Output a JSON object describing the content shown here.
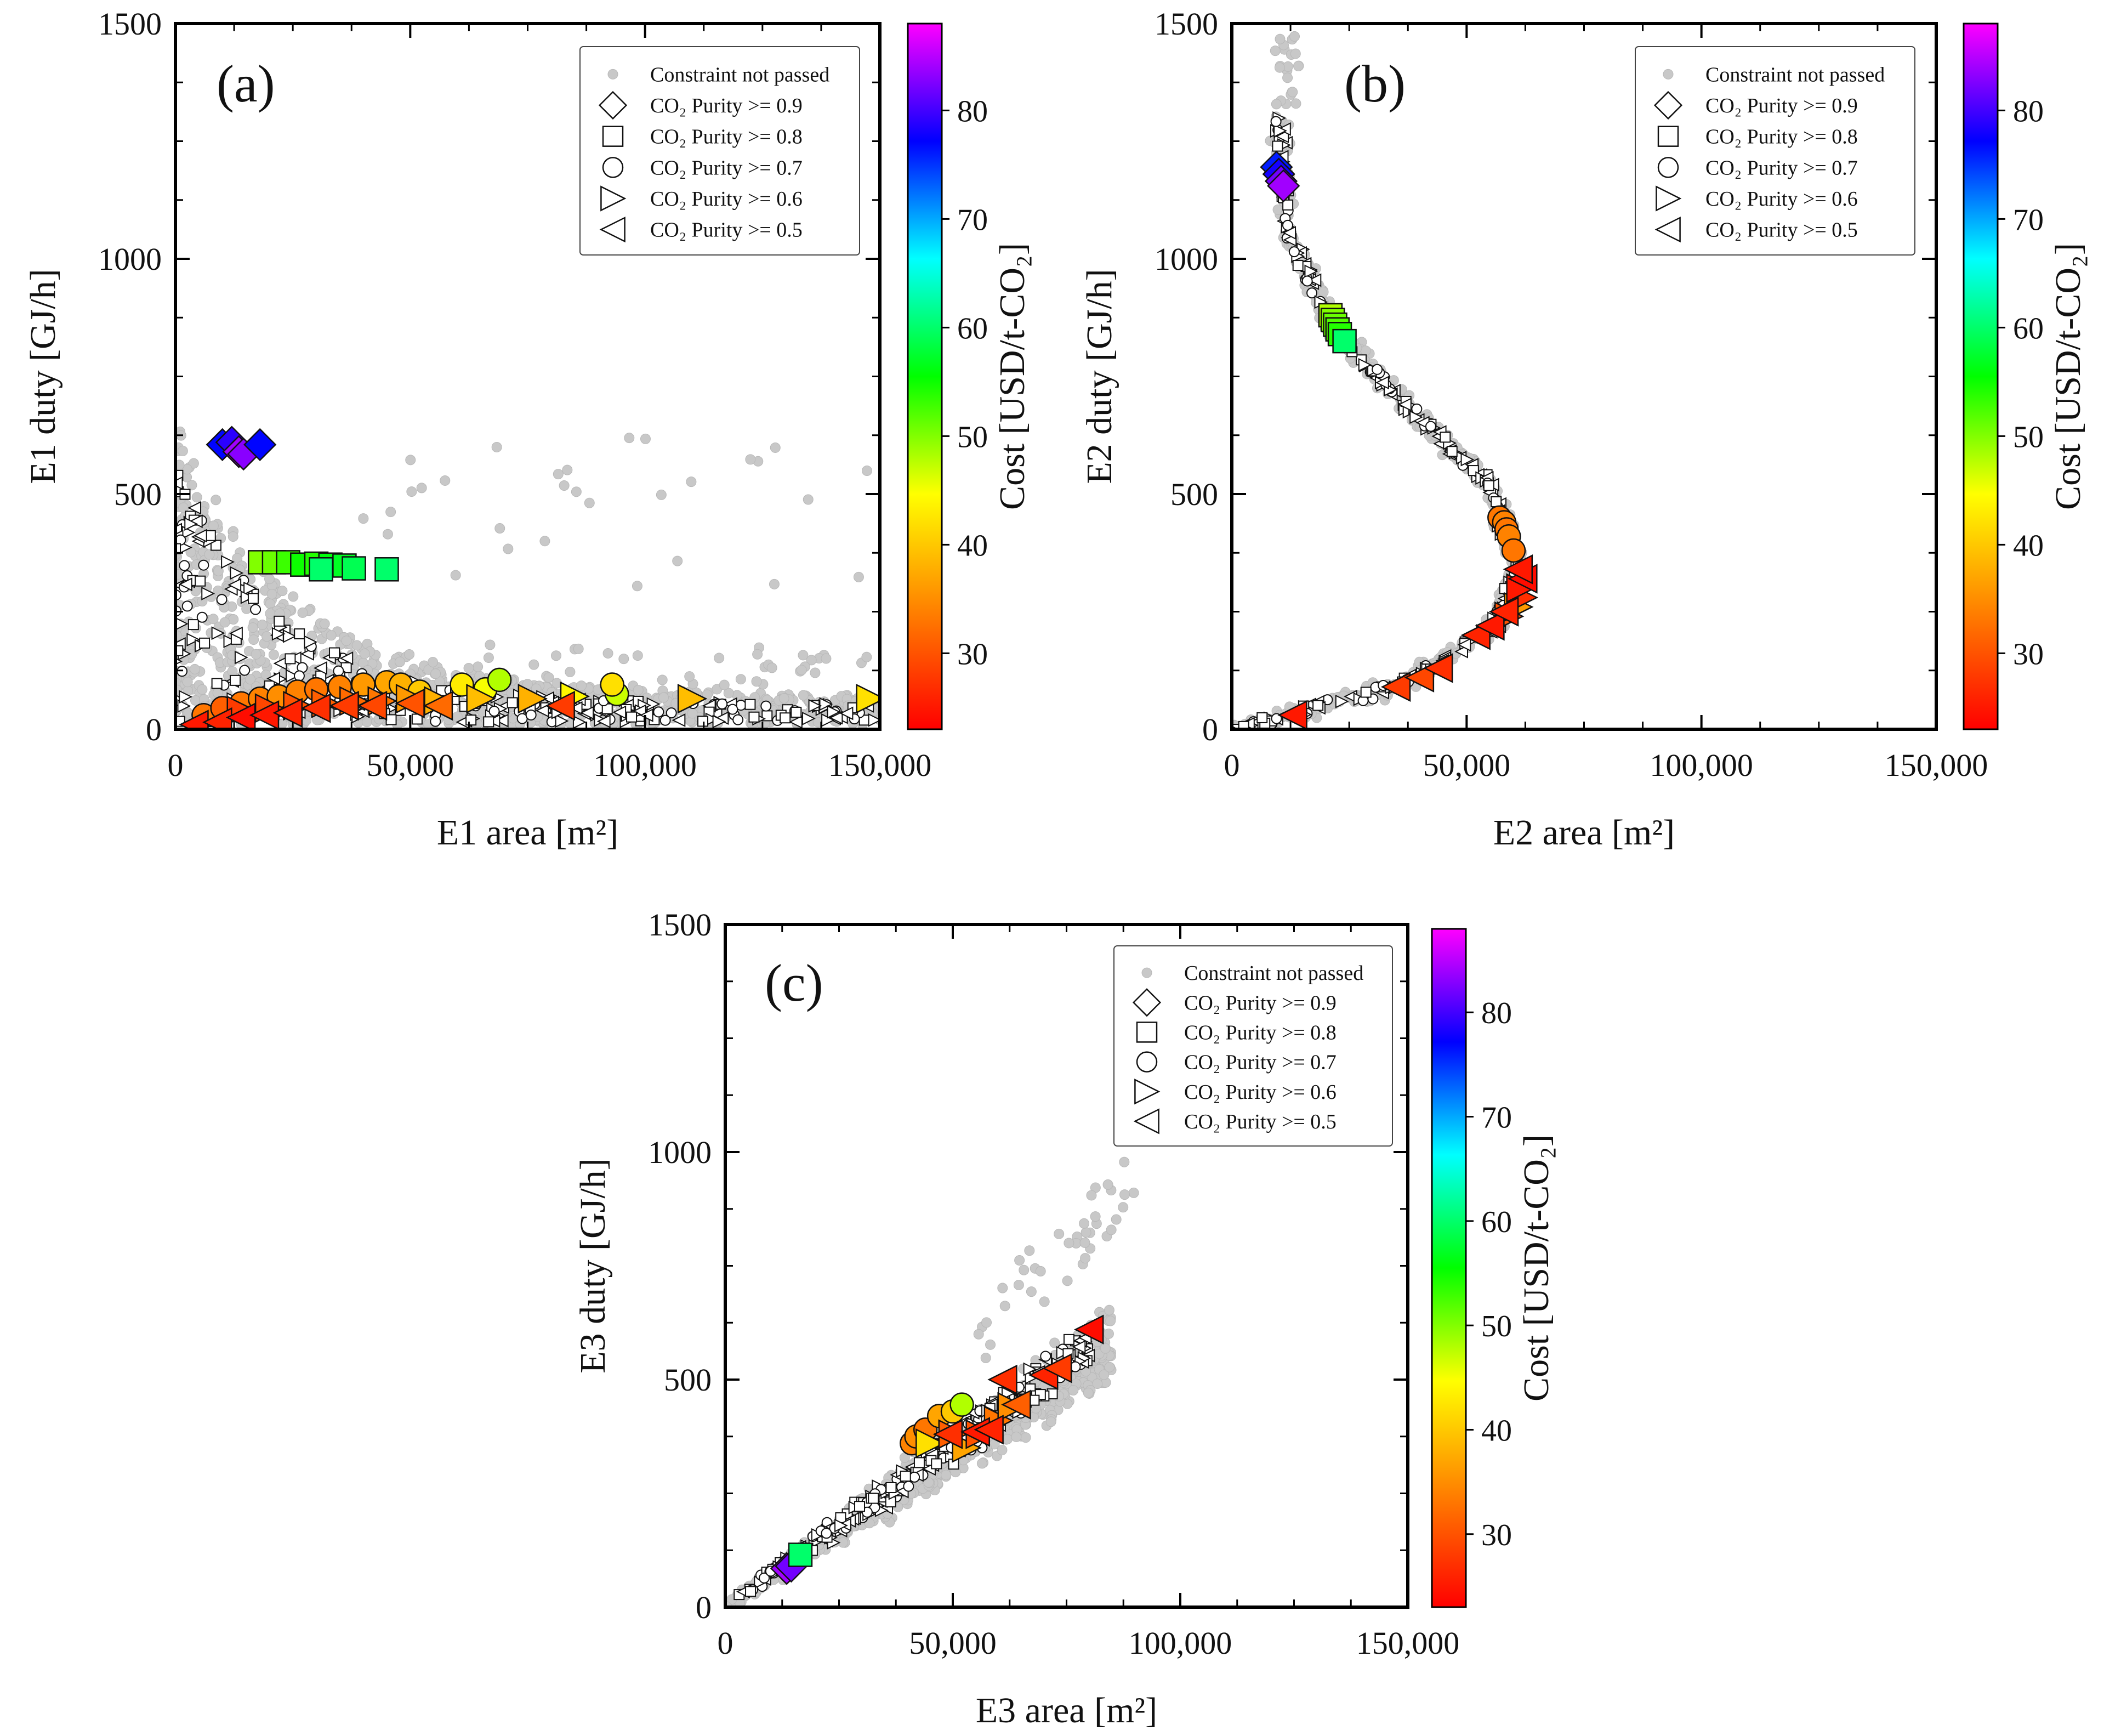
{
  "figure": {
    "legend": [
      {
        "marker": "circle-grey",
        "text": "Constraint not passed"
      },
      {
        "marker": "diamond",
        "text": "CO₂ Purity >= 0.9"
      },
      {
        "marker": "square",
        "text": "CO₂ Purity >= 0.8"
      },
      {
        "marker": "circle",
        "text": "CO₂ Purity >= 0.7"
      },
      {
        "marker": "triangle-right",
        "text": "CO₂ Purity >= 0.6"
      },
      {
        "marker": "triangle-left",
        "text": "CO₂ Purity >= 0.5"
      }
    ],
    "colorbar": {
      "label": "Cost [USD/t-CO₂]",
      "range": [
        23,
        88
      ],
      "ticks": [
        30,
        40,
        50,
        60,
        70,
        80
      ],
      "tick_labels": [
        "30",
        "40",
        "50",
        "60",
        "70",
        "80"
      ],
      "colors": [
        "#ff0000",
        "#ff8000",
        "#ffff00",
        "#00ff00",
        "#00ffff",
        "#0000ff",
        "#ff00ff"
      ],
      "grey_color": "#c8c8c8"
    }
  },
  "chart_data": [
    {
      "type": "scatter",
      "panel": "(a)",
      "xlabel": "E1 area [m²]",
      "ylabel": "E1 duty [GJ/h]",
      "xlim": [
        0,
        150000
      ],
      "ylim": [
        0,
        1500
      ],
      "xticks": [
        0,
        50000,
        100000,
        150000
      ],
      "xtick_labels": [
        "0",
        "50,000",
        "100,000",
        "150,000"
      ],
      "yticks": [
        0,
        500,
        1000,
        1500
      ],
      "ytick_labels": [
        "0",
        "500",
        "1000",
        "1500"
      ],
      "series": [
        {
          "name": "CO₂ Purity >= 0.9",
          "marker": "diamond",
          "points": [
            [
              10000,
              605,
              77
            ],
            [
              12000,
              610,
              79
            ],
            [
              13500,
              590,
              84
            ],
            [
              14500,
              585,
              83
            ],
            [
              18000,
              605,
              77
            ]
          ]
        },
        {
          "name": "CO₂ Purity >= 0.8",
          "marker": "square",
          "points": [
            [
              18000,
              355,
              50
            ],
            [
              21000,
              355,
              51
            ],
            [
              24000,
              355,
              53
            ],
            [
              27000,
              350,
              55
            ],
            [
              30000,
              352,
              54
            ],
            [
              33000,
              350,
              56
            ],
            [
              36000,
              348,
              57
            ],
            [
              31000,
              340,
              60
            ],
            [
              38000,
              342,
              59
            ],
            [
              45000,
              340,
              60
            ]
          ]
        },
        {
          "name": "CO₂ Purity >= 0.7",
          "marker": "circle",
          "points": [
            [
              6000,
              30,
              33
            ],
            [
              10000,
              45,
              31
            ],
            [
              14000,
              55,
              33
            ],
            [
              18000,
              65,
              34
            ],
            [
              22000,
              70,
              35
            ],
            [
              26000,
              80,
              34
            ],
            [
              30000,
              85,
              33
            ],
            [
              35000,
              90,
              34
            ],
            [
              40000,
              95,
              36
            ],
            [
              45000,
              100,
              37
            ],
            [
              48000,
              95,
              38
            ],
            [
              52000,
              80,
              40
            ],
            [
              61000,
              95,
              43
            ],
            [
              66000,
              85,
              45
            ],
            [
              69000,
              105,
              48
            ],
            [
              94000,
              75,
              47
            ],
            [
              93000,
              95,
              42
            ]
          ]
        },
        {
          "name": "CO₂ Purity >= 0.6",
          "marker": "triangle-right",
          "points": [
            [
              14000,
              40,
              28
            ],
            [
              20000,
              45,
              29
            ],
            [
              26000,
              50,
              30
            ],
            [
              32000,
              55,
              31
            ],
            [
              38000,
              60,
              32
            ],
            [
              44000,
              60,
              33
            ],
            [
              50000,
              65,
              36
            ],
            [
              56000,
              60,
              38
            ],
            [
              65000,
              65,
              39
            ],
            [
              76000,
              65,
              38
            ],
            [
              85000,
              70,
              44
            ],
            [
              110000,
              65,
              39
            ],
            [
              148000,
              65,
              42
            ]
          ]
        },
        {
          "name": "CO₂ Purity >= 0.5",
          "marker": "triangle-left",
          "points": [
            [
              4000,
              10,
              25
            ],
            [
              9000,
              15,
              26
            ],
            [
              14000,
              25,
              24
            ],
            [
              19000,
              30,
              25
            ],
            [
              24000,
              35,
              26
            ],
            [
              30000,
              45,
              27
            ],
            [
              36000,
              50,
              28
            ],
            [
              42000,
              50,
              29
            ],
            [
              50000,
              55,
              30
            ],
            [
              56000,
              50,
              32
            ],
            [
              82000,
              50,
              28
            ]
          ]
        }
      ]
    },
    {
      "type": "scatter",
      "panel": "(b)",
      "xlabel": "E2 area [m²]",
      "ylabel": "E2 duty [GJ/h]",
      "xlim": [
        0,
        150000
      ],
      "ylim": [
        0,
        1500
      ],
      "xticks": [
        0,
        50000,
        100000,
        150000
      ],
      "xtick_labels": [
        "0",
        "50,000",
        "100,000",
        "150,000"
      ],
      "yticks": [
        0,
        500,
        1000,
        1500
      ],
      "ytick_labels": [
        "0",
        "500",
        "1000",
        "1500"
      ],
      "series": [
        {
          "name": "CO₂ Purity >= 0.9",
          "marker": "diamond",
          "points": [
            [
              9500,
              1195,
              76
            ],
            [
              10000,
              1180,
              78
            ],
            [
              10500,
              1165,
              82
            ],
            [
              11000,
              1155,
              84
            ]
          ]
        },
        {
          "name": "CO₂ Purity >= 0.8",
          "marker": "square",
          "points": [
            [
              21000,
              880,
              48
            ],
            [
              21500,
              870,
              50
            ],
            [
              22000,
              860,
              51
            ],
            [
              22500,
              850,
              52
            ],
            [
              23000,
              840,
              54
            ],
            [
              24000,
              825,
              60
            ]
          ]
        },
        {
          "name": "CO₂ Purity >= 0.7",
          "marker": "circle",
          "points": [
            [
              57000,
              450,
              33
            ],
            [
              58000,
              440,
              34
            ],
            [
              58500,
              425,
              33
            ],
            [
              59000,
              410,
              34
            ],
            [
              60000,
              380,
              33
            ]
          ]
        },
        {
          "name": "CO₂ Purity >= 0.6",
          "marker": "triangle-right",
          "points": [
            [
              59000,
              240,
              30
            ],
            [
              61000,
              260,
              36
            ],
            [
              62000,
              280,
              27
            ],
            [
              61500,
              300,
              25
            ]
          ]
        },
        {
          "name": "CO₂ Purity >= 0.5",
          "marker": "triangle-left",
          "points": [
            [
              13000,
              30,
              25
            ],
            [
              35000,
              90,
              28
            ],
            [
              40000,
              110,
              29
            ],
            [
              44000,
              130,
              27
            ],
            [
              52000,
              200,
              26
            ],
            [
              55000,
              220,
              25
            ],
            [
              58000,
              250,
              26
            ],
            [
              62000,
              320,
              24
            ],
            [
              61000,
              340,
              25
            ]
          ]
        }
      ]
    },
    {
      "type": "scatter",
      "panel": "(c)",
      "xlabel": "E3 area [m²]",
      "ylabel": "E3 duty [GJ/h]",
      "xlim": [
        0,
        150000
      ],
      "ylim": [
        0,
        1500
      ],
      "xticks": [
        0,
        50000,
        100000,
        150000
      ],
      "xtick_labels": [
        "0",
        "50,000",
        "100,000",
        "150,000"
      ],
      "yticks": [
        0,
        500,
        1000,
        1500
      ],
      "ytick_labels": [
        "0",
        "500",
        "1000",
        "1500"
      ],
      "series": [
        {
          "name": "CO₂ Purity >= 0.9",
          "marker": "diamond",
          "points": [
            [
              13500,
              85,
              84
            ],
            [
              14500,
              90,
              82
            ]
          ]
        },
        {
          "name": "CO₂ Purity >= 0.8",
          "marker": "square",
          "points": [
            [
              16500,
              115,
              60
            ]
          ]
        },
        {
          "name": "CO₂ Purity >= 0.7",
          "marker": "circle",
          "points": [
            [
              41000,
              360,
              34
            ],
            [
              42000,
              375,
              35
            ],
            [
              44000,
              390,
              33
            ],
            [
              47000,
              420,
              37
            ],
            [
              50000,
              430,
              40
            ],
            [
              52000,
              445,
              48
            ]
          ]
        },
        {
          "name": "CO₂ Purity >= 0.6",
          "marker": "triangle-right",
          "points": [
            [
              45000,
              360,
              42
            ],
            [
              50000,
              380,
              31
            ],
            [
              53000,
              350,
              37
            ],
            [
              56000,
              380,
              30
            ],
            [
              60000,
              410,
              33
            ],
            [
              63000,
              440,
              35
            ]
          ]
        },
        {
          "name": "CO₂ Purity >= 0.5",
          "marker": "triangle-left",
          "points": [
            [
              49000,
              380,
              27
            ],
            [
              55000,
              385,
              25
            ],
            [
              58000,
              390,
              26
            ],
            [
              61000,
              500,
              27
            ],
            [
              64000,
              445,
              31
            ],
            [
              70000,
              510,
              26
            ],
            [
              73000,
              525,
              28
            ],
            [
              80000,
              610,
              24
            ]
          ]
        }
      ]
    }
  ]
}
